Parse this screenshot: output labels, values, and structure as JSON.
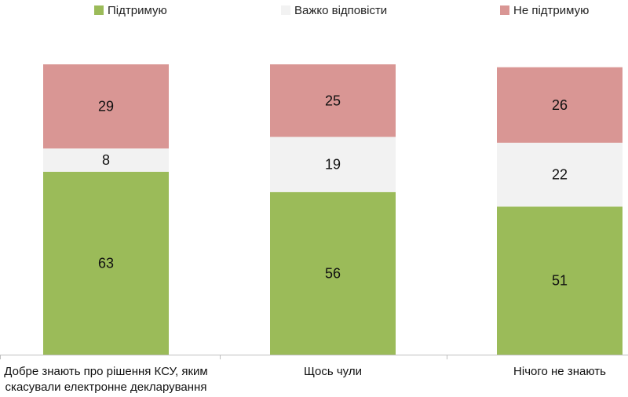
{
  "chart_data": {
    "type": "bar",
    "stacked": true,
    "percent_stacked": true,
    "categories": [
      [
        "Добре знають про рішення КСУ, яким",
        "скасували електронне декларування"
      ],
      [
        "Щось чули"
      ],
      [
        "Нічого не знають"
      ]
    ],
    "series": [
      {
        "name": "Підтримую",
        "color": "#9bbb59",
        "values": [
          63,
          56,
          51
        ]
      },
      {
        "name": "Важко відповісти",
        "color": "#f2f2f2",
        "values": [
          8,
          19,
          22
        ]
      },
      {
        "name": "Не підтримую",
        "color": "#d99694",
        "values": [
          29,
          25,
          26
        ]
      }
    ],
    "ylim": [
      0,
      100
    ],
    "legend_position": "top",
    "grid": false,
    "axis_color": "#bfbfbf"
  }
}
